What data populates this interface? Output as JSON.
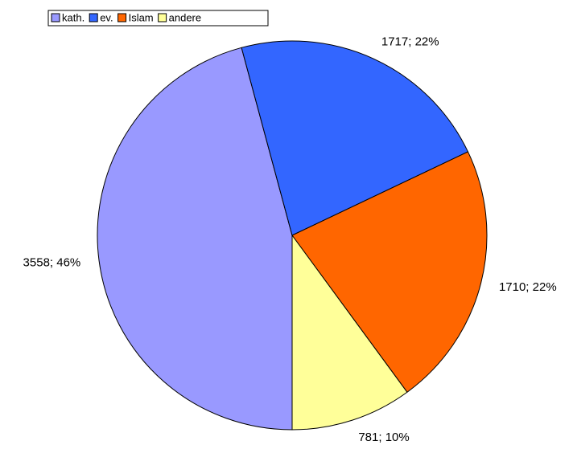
{
  "chart_data": {
    "type": "pie",
    "categories": [
      "kath.",
      "ev.",
      "Islam",
      "andere"
    ],
    "values": [
      3558,
      1717,
      1710,
      781
    ],
    "value_labels": [
      "3558; 46%",
      "1717; 22%",
      "1710; 22%",
      "781; 10%"
    ],
    "colors": [
      "#9999ff",
      "#3366ff",
      "#ff6600",
      "#ffff99"
    ],
    "legend": "top-left"
  }
}
